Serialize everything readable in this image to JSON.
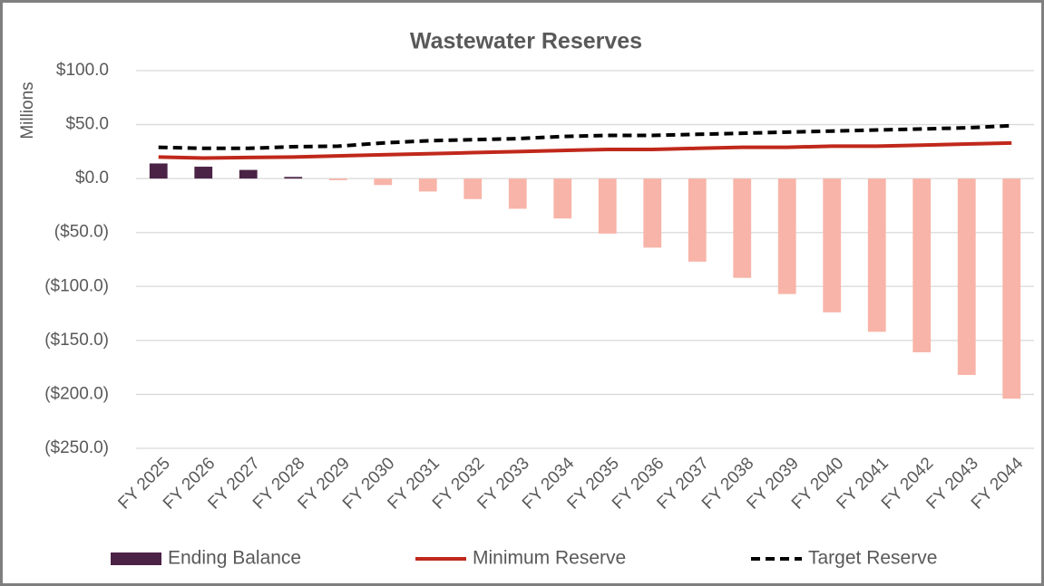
{
  "chart_data": {
    "type": "combo",
    "title": "Wastewater Reserves",
    "y_label": "Millions",
    "categories": [
      "FY 2025",
      "FY 2026",
      "FY 2027",
      "FY 2028",
      "FY 2029",
      "FY 2030",
      "FY 2031",
      "FY 2032",
      "FY 2033",
      "FY 2034",
      "FY 2035",
      "FY 2036",
      "FY 2037",
      "FY 2038",
      "FY 2039",
      "FY 2040",
      "FY 2041",
      "FY 2042",
      "FY 2043",
      "FY 2044"
    ],
    "series": [
      {
        "name": "Ending Balance",
        "type": "bar",
        "color": "#4b2346",
        "negative_color": "#f8b4a8",
        "values": [
          14,
          11,
          8,
          1.5,
          -1.5,
          -6,
          -12,
          -19,
          -28,
          -37,
          -51,
          -64,
          -77,
          -92,
          -107,
          -124,
          -142,
          -161,
          -182,
          -204
        ]
      },
      {
        "name": "Minimum Reserve",
        "type": "line",
        "color": "#c0281b",
        "dashed": false,
        "values": [
          20,
          19,
          19.5,
          20,
          21,
          22,
          23,
          24,
          25,
          26,
          27,
          27,
          28,
          29,
          29,
          30,
          30,
          31,
          32,
          33
        ]
      },
      {
        "name": "Target Reserve",
        "type": "line",
        "color": "#000000",
        "dashed": true,
        "values": [
          29,
          28,
          28,
          29.5,
          30,
          33,
          35,
          36,
          37,
          39,
          40,
          40,
          41,
          42,
          43,
          44,
          45,
          46,
          47,
          49
        ]
      }
    ],
    "ylim": [
      -250,
      100
    ],
    "yticks": [
      {
        "value": 100,
        "label": "$100.0"
      },
      {
        "value": 50,
        "label": "$50.0"
      },
      {
        "value": 0,
        "label": "$0.0"
      },
      {
        "value": -50,
        "label": "($50.0)"
      },
      {
        "value": -100,
        "label": "($100.0)"
      },
      {
        "value": -150,
        "label": "($150.0)"
      },
      {
        "value": -200,
        "label": "($200.0)"
      },
      {
        "value": -250,
        "label": "($250.0)"
      }
    ],
    "grid": true,
    "legend": "bottom"
  }
}
